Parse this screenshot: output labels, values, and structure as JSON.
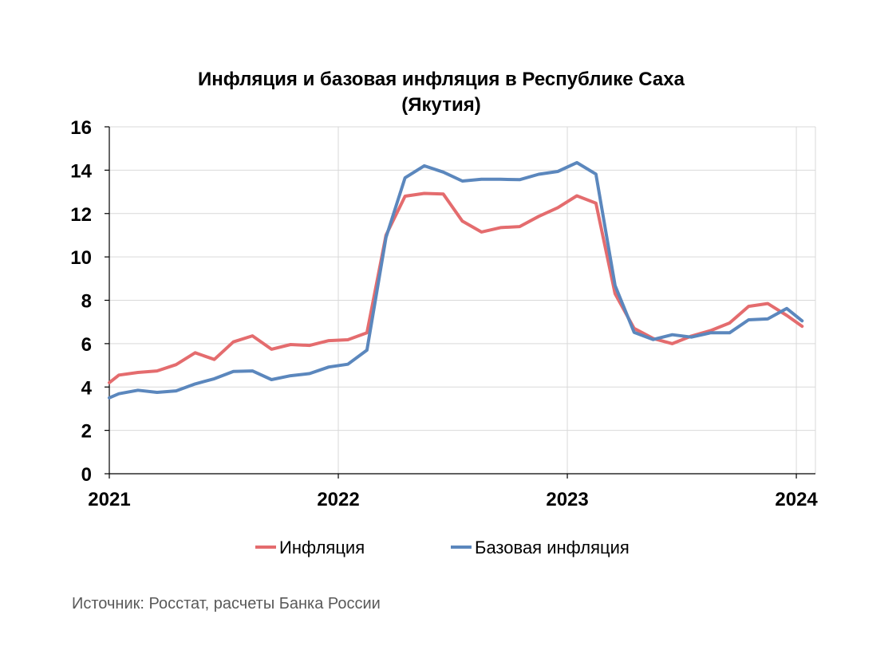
{
  "chart_data": {
    "type": "line",
    "title_line1": "Инфляция и базовая инфляция в Республике Саха",
    "title_line2": "(Якутия)",
    "x_tick_labels": [
      "2021",
      "2022",
      "2023",
      "2024"
    ],
    "x_ticks_month_index": [
      0,
      12,
      24,
      36
    ],
    "x_range_month_index": [
      0,
      37
    ],
    "ylim": [
      0,
      16
    ],
    "y_ticks": [
      0,
      2,
      4,
      6,
      8,
      10,
      12,
      14,
      16
    ],
    "y_tick_labels": [
      "0",
      "2",
      "4",
      "6",
      "8",
      "10",
      "12",
      "14",
      "16"
    ],
    "grid": true,
    "legend_position": "bottom",
    "x_month_index": [
      0,
      0.5,
      1.5,
      2.5,
      3.5,
      4.5,
      5.5,
      6.5,
      7.5,
      8.5,
      9.5,
      10.5,
      11.5,
      12.5,
      13.5,
      14.5,
      15.5,
      16.5,
      17.5,
      18.5,
      19.5,
      20.5,
      21.5,
      22.5,
      23.5,
      24.5,
      25.5,
      26.5,
      27.5,
      28.5,
      29.5,
      30.5,
      31.5,
      32.5,
      33.5,
      34.5,
      35.5,
      36.3
    ],
    "series": [
      {
        "name": "Инфляция",
        "color": "#e46c6e",
        "values": [
          4.2,
          4.55,
          4.67,
          4.74,
          5.03,
          5.58,
          5.27,
          6.08,
          6.36,
          5.74,
          5.96,
          5.92,
          6.14,
          6.18,
          6.5,
          11.0,
          12.8,
          12.93,
          12.9,
          11.65,
          11.15,
          11.35,
          11.4,
          11.87,
          12.27,
          12.82,
          12.48,
          8.3,
          6.7,
          6.24,
          6.0,
          6.35,
          6.6,
          6.95,
          7.72,
          7.85,
          7.3,
          6.8
        ]
      },
      {
        "name": "Базовая инфляция",
        "color": "#5b87bd",
        "values": [
          3.5,
          3.69,
          3.85,
          3.75,
          3.82,
          4.14,
          4.38,
          4.72,
          4.74,
          4.34,
          4.52,
          4.62,
          4.92,
          5.05,
          5.7,
          10.9,
          13.65,
          14.2,
          13.91,
          13.5,
          13.58,
          13.58,
          13.56,
          13.81,
          13.94,
          14.35,
          13.82,
          8.68,
          6.52,
          6.19,
          6.41,
          6.3,
          6.5,
          6.5,
          7.1,
          7.14,
          7.62,
          7.05
        ]
      }
    ]
  },
  "source_text": "Источник: Росстат, расчеты Банка России"
}
